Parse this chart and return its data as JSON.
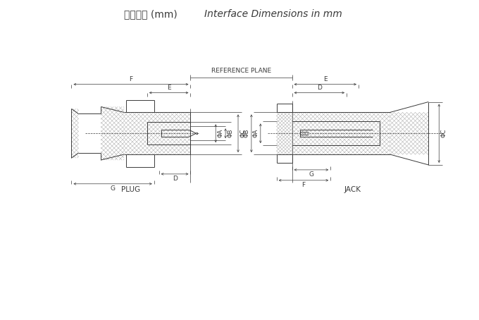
{
  "title_cn": "界面尺寸 (mm)",
  "title_en": "Interface Dimensions in mm",
  "ref_plane_label": "REFERENCE PLANE",
  "plug_label": "PLUG",
  "jack_label": "JACK",
  "bg_color": "#ffffff",
  "line_color": "#3a3a3a",
  "dim_color": "#3a3a3a",
  "hatch_lw": 0.3,
  "main_lw": 0.7,
  "dim_lw": 0.5,
  "font_size_title": 10,
  "font_size_labels": 6.5,
  "font_size_ref": 6.5,
  "font_size_connector": 7.5
}
